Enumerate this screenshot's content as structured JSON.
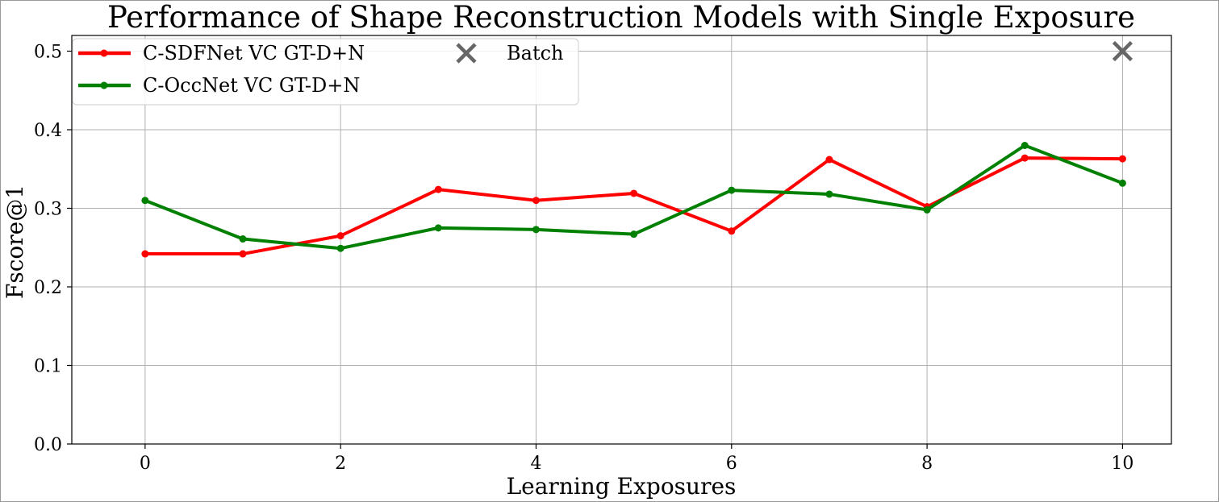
{
  "chart_data": {
    "type": "line",
    "title": "Performance of Shape Reconstruction Models with Single Exposure",
    "xlabel": "Learning Exposures",
    "ylabel": "Fscore@1",
    "xlim": [
      -0.75,
      10.5
    ],
    "ylim": [
      0.0,
      0.52
    ],
    "xticks": [
      0,
      2,
      4,
      6,
      8,
      10
    ],
    "yticks": [
      0.0,
      0.1,
      0.2,
      0.3,
      0.4,
      0.5
    ],
    "xtick_labels": [
      "0",
      "2",
      "4",
      "6",
      "8",
      "10"
    ],
    "ytick_labels": [
      "0.0",
      "0.1",
      "0.2",
      "0.3",
      "0.4",
      "0.5"
    ],
    "grid": true,
    "legend_position": "top-left",
    "x": [
      0,
      1,
      2,
      3,
      4,
      5,
      6,
      7,
      8,
      9,
      10
    ],
    "series": [
      {
        "name": "C-SDFNet VC GT-D+N",
        "color": "#ff0000",
        "values": [
          0.242,
          0.242,
          0.265,
          0.324,
          0.31,
          0.319,
          0.271,
          0.362,
          0.302,
          0.364,
          0.363
        ]
      },
      {
        "name": "C-OccNet VC GT-D+N",
        "color": "#008000",
        "values": [
          0.31,
          0.261,
          0.249,
          0.275,
          0.273,
          0.267,
          0.323,
          0.318,
          0.298,
          0.38,
          0.332
        ]
      }
    ],
    "markers": [
      {
        "name": "Batch",
        "x": 10,
        "y": 0.5,
        "color": "#666666",
        "symbol": "x"
      }
    ]
  }
}
